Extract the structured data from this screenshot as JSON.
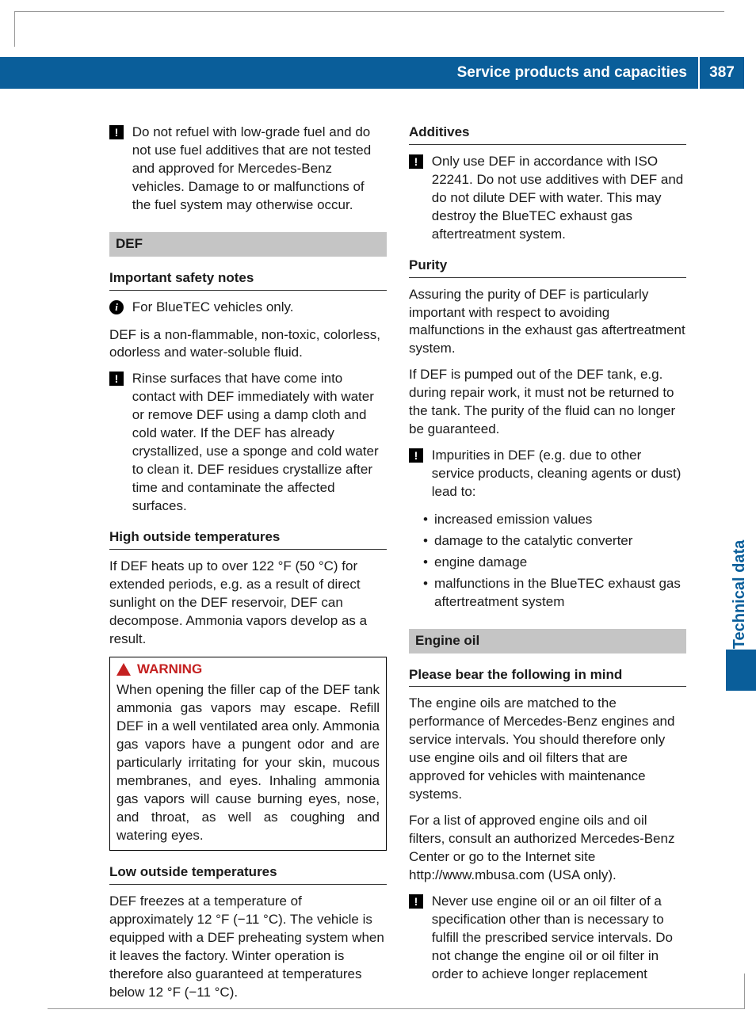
{
  "header": {
    "title": "Service products and capacities",
    "page_number": "387"
  },
  "side_tab": "Technical data",
  "colors": {
    "blue": "#0a5e9a",
    "gray_heading_bg": "#c5c5c5",
    "warning_red": "#c42020",
    "text": "#1a1a1a"
  },
  "left_column": {
    "fuel_warning": "Do not refuel with low-grade fuel and do not use fuel additives that are not tested and approved for Mercedes-Benz vehicles. Damage to or malfunctions of the fuel system may otherwise occur.",
    "def_heading": "DEF",
    "safety_heading": "Important safety notes",
    "bluetec_info": "For BlueTEC vehicles only.",
    "def_description": "DEF is a non-flammable, non-toxic, colorless, odorless and water-soluble fluid.",
    "rinse_warning": "Rinse surfaces that have come into contact with DEF immediately with water or remove DEF using a damp cloth and cold water. If the DEF has already crystallized, use a sponge and cold water to clean it. DEF residues crystallize after time and contaminate the affected surfaces.",
    "high_temp_heading": "High outside temperatures",
    "high_temp_text": "If DEF heats up to over 122 °F (50 °C) for extended periods, e.g. as a result of direct sunlight on the DEF reservoir, DEF can decompose. Ammonia vapors develop as a result.",
    "warning_label": "WARNING",
    "warning_text": "When opening the filler cap of the DEF tank ammonia gas vapors may escape. Refill DEF in a well ventilated area only. Ammonia gas vapors have a pungent odor and are particularly irritating for your skin, mucous membranes, and eyes. Inhaling ammonia gas vapors will cause burning eyes, nose, and throat, as well as coughing and watering eyes.",
    "low_temp_heading": "Low outside temperatures",
    "low_temp_text": "DEF freezes at a temperature of approximately 12 °F (−11 °C). The vehicle is equipped with a DEF preheating system when it leaves the factory. Winter operation is therefore also guaranteed at temperatures below 12 °F (−11 °C)."
  },
  "right_column": {
    "additives_heading": "Additives",
    "additives_warning": "Only use DEF in accordance with ISO 22241. Do not use additives with DEF and do not dilute DEF with water. This may destroy the BlueTEC exhaust gas aftertreatment system.",
    "purity_heading": "Purity",
    "purity_p1": "Assuring the purity of DEF is particularly important with respect to avoiding malfunctions in the exhaust gas aftertreatment system.",
    "purity_p2": "If DEF is pumped out of the DEF tank, e.g. during repair work, it must not be returned to the tank. The purity of the fluid can no longer be guaranteed.",
    "impurities_intro": "Impurities in DEF (e.g. due to other service products, cleaning agents or dust) lead to:",
    "impurities_list": [
      "increased emission values",
      "damage to the catalytic converter",
      "engine damage",
      "malfunctions in the BlueTEC exhaust gas aftertreatment system"
    ],
    "engine_oil_heading": "Engine oil",
    "engine_oil_sub": "Please bear the following in mind",
    "engine_oil_p1": "The engine oils are matched to the performance of Mercedes-Benz engines and service intervals. You should therefore only use engine oils and oil filters that are approved for vehicles with maintenance systems.",
    "engine_oil_p2": "For a list of approved engine oils and oil filters, consult an authorized Mercedes-Benz Center or go to the Internet site http://www.mbusa.com (USA only).",
    "engine_oil_warning": "Never use engine oil or an oil filter of a specification other than is necessary to fulfill the prescribed service intervals. Do not change the engine oil or oil filter in order to achieve longer replacement"
  }
}
